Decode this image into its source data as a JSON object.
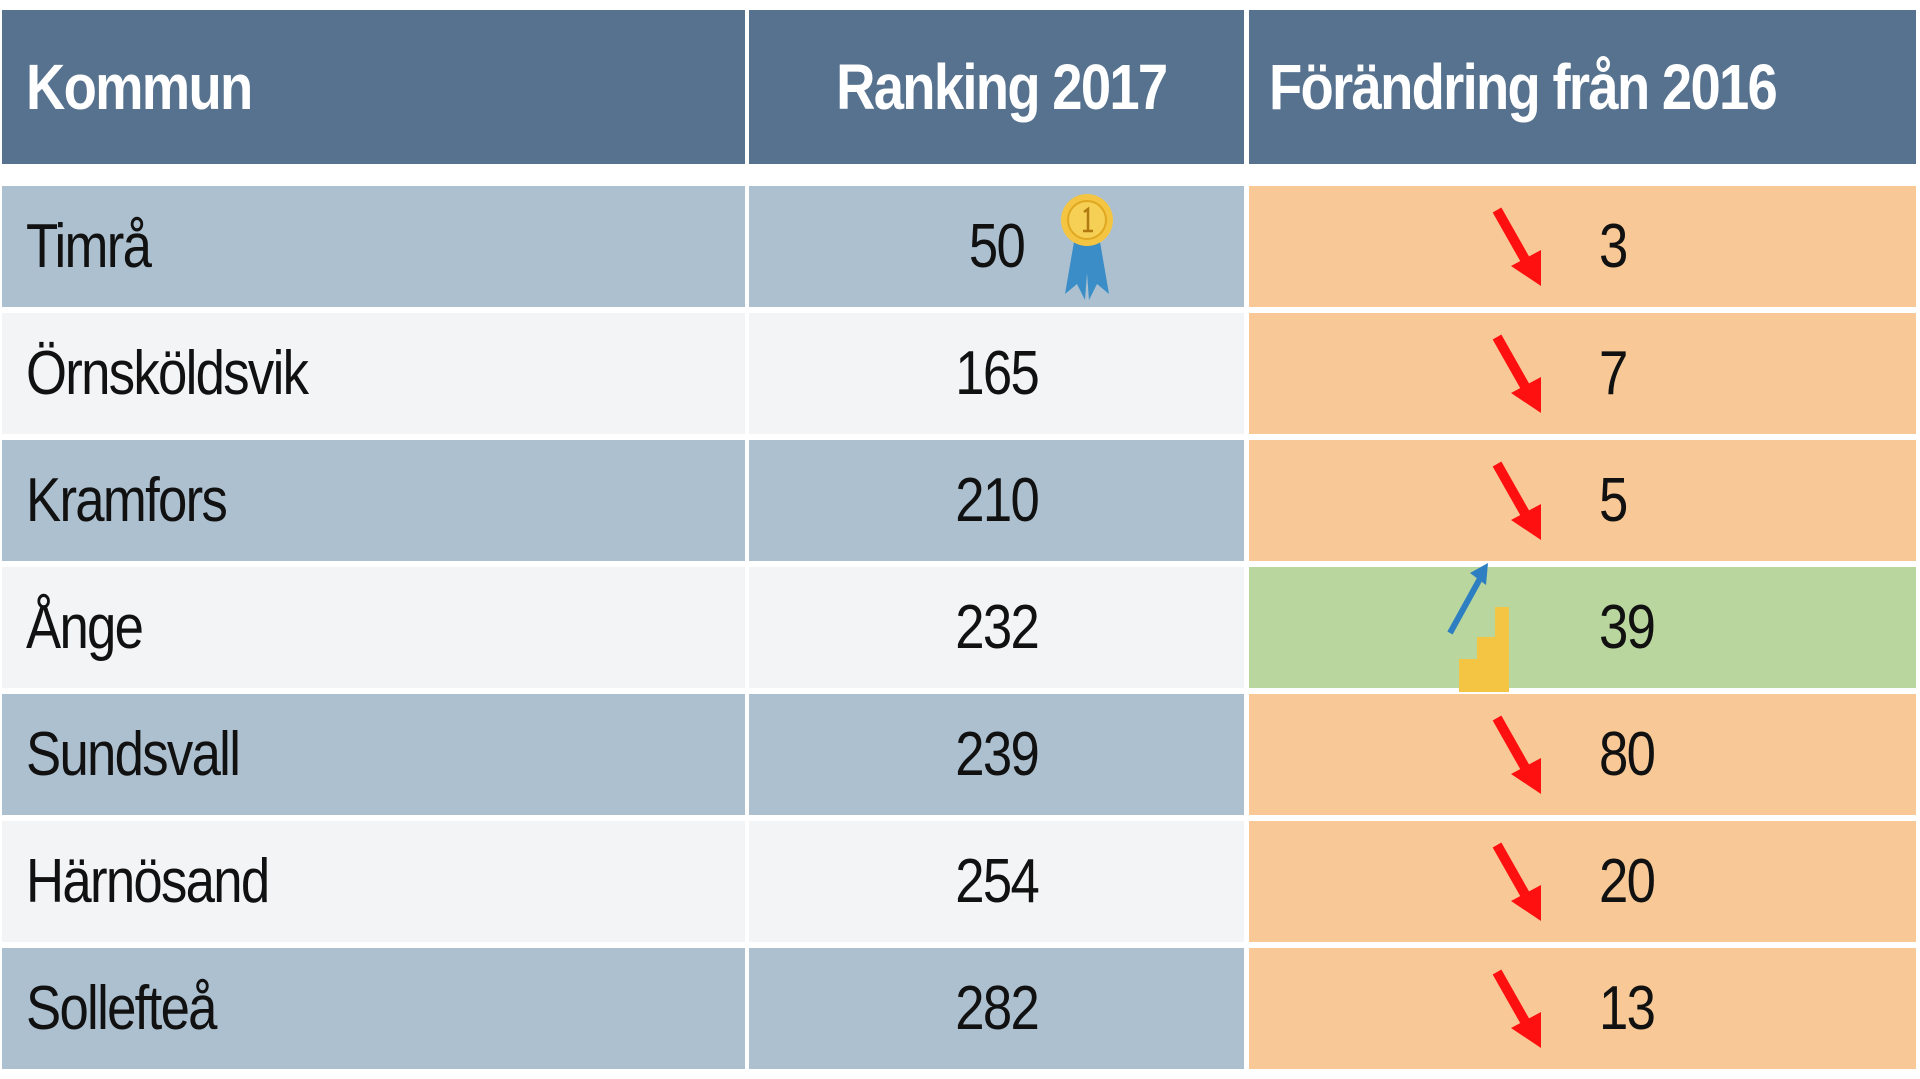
{
  "table": {
    "header": [
      "Kommun",
      "Ranking 2017",
      "Förändring från 2016"
    ],
    "rows": [
      [
        "Timrå",
        "50",
        "3"
      ],
      [
        "Örnsköldsvik",
        "165",
        "7"
      ],
      [
        "Kramfors",
        "210",
        "5"
      ],
      [
        "Ånge",
        "232",
        "39"
      ],
      [
        "Sundsvall",
        "239",
        "80"
      ],
      [
        "Härnösand",
        "254",
        "20"
      ],
      [
        "Sollefteå",
        "282",
        "13"
      ]
    ]
  }
}
